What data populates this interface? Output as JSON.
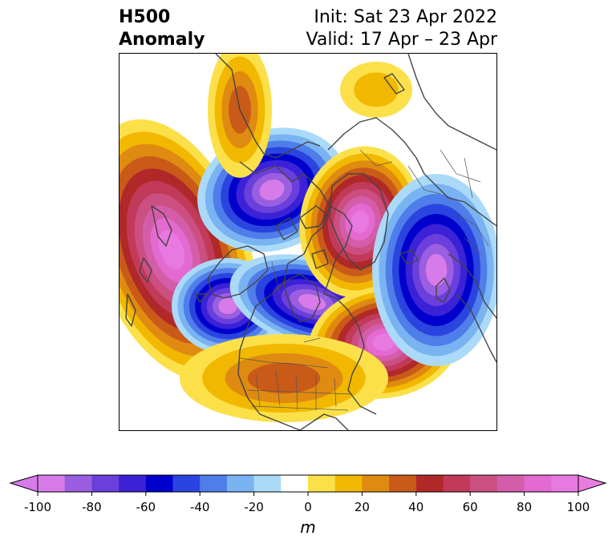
{
  "title": {
    "left_line1": "H500",
    "left_line2": "Anomaly",
    "right_line1": "Init: Sat 23 Apr 2022",
    "right_line2": "Valid: 17 Apr – 23 Apr"
  },
  "colorbar": {
    "unit": "m",
    "ticks": [
      "-100",
      "-80",
      "-60",
      "-40",
      "-20",
      "0",
      "20",
      "40",
      "60",
      "80",
      "100"
    ],
    "colors": [
      "#d67be9",
      "#9a5fe0",
      "#6a3fdc",
      "#3c22d6",
      "#0000cc",
      "#2a44df",
      "#4f7de9",
      "#7ab3f1",
      "#abdaf9",
      "#ffffff",
      "#fbe04a",
      "#f2b800",
      "#df8a10",
      "#c95a18",
      "#b02828",
      "#c23a5a",
      "#cc4f82",
      "#d45da9",
      "#e36ad0",
      "#e879e0"
    ],
    "under_color": "#d67be9",
    "over_color": "#e87de0"
  },
  "map": {
    "projection": "north-polar-stereographic",
    "land_color": "#444444",
    "anomaly_features": [
      {
        "id": "pacific-ridge",
        "sign": "positive",
        "peak_m": 100
      },
      {
        "id": "alaska-low",
        "sign": "negative",
        "peak_m": -100
      },
      {
        "id": "north-pacific-low",
        "sign": "negative",
        "peak_m": -100
      },
      {
        "id": "canada-low",
        "sign": "negative",
        "peak_m": -100
      },
      {
        "id": "greenland-ridge",
        "sign": "positive",
        "peak_m": 100
      },
      {
        "id": "north-atlantic-ridge",
        "sign": "positive",
        "peak_m": 100
      },
      {
        "id": "siberia-low",
        "sign": "negative",
        "peak_m": -100
      },
      {
        "id": "us-ridge",
        "sign": "positive",
        "peak_m": 40
      },
      {
        "id": "west-pacific-ridge",
        "sign": "positive",
        "peak_m": 40
      },
      {
        "id": "arctic-ridge",
        "sign": "positive",
        "peak_m": 20
      }
    ]
  }
}
